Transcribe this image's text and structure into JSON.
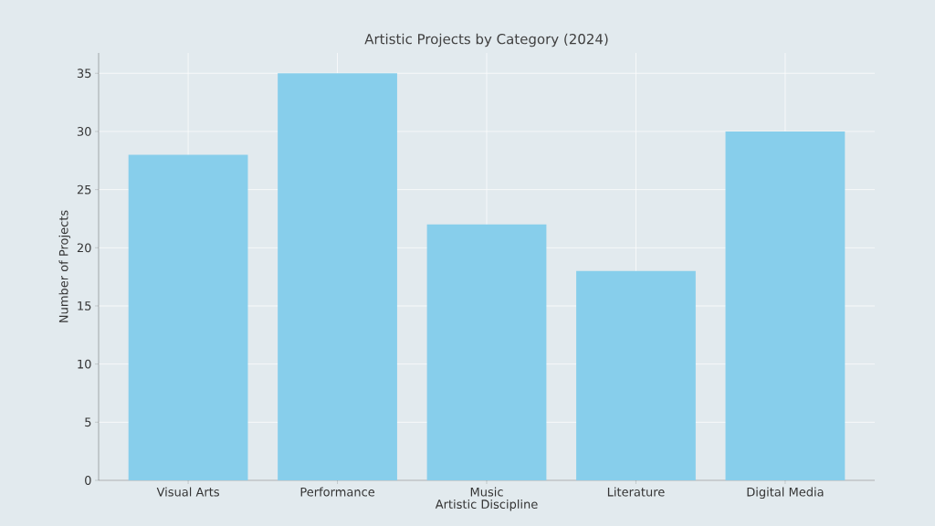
{
  "chart_data": {
    "type": "bar",
    "title": "Artistic Projects by Category (2024)",
    "xlabel": "Artistic Discipline",
    "ylabel": "Number of Projects",
    "categories": [
      "Visual Arts",
      "Performance",
      "Music",
      "Literature",
      "Digital Media"
    ],
    "values": [
      28,
      35,
      22,
      18,
      30
    ],
    "color": "#87ceeb",
    "ylim": [
      0,
      36.75
    ],
    "yticks": [
      0,
      5,
      10,
      15,
      20,
      25,
      30,
      35
    ],
    "grid": true
  }
}
